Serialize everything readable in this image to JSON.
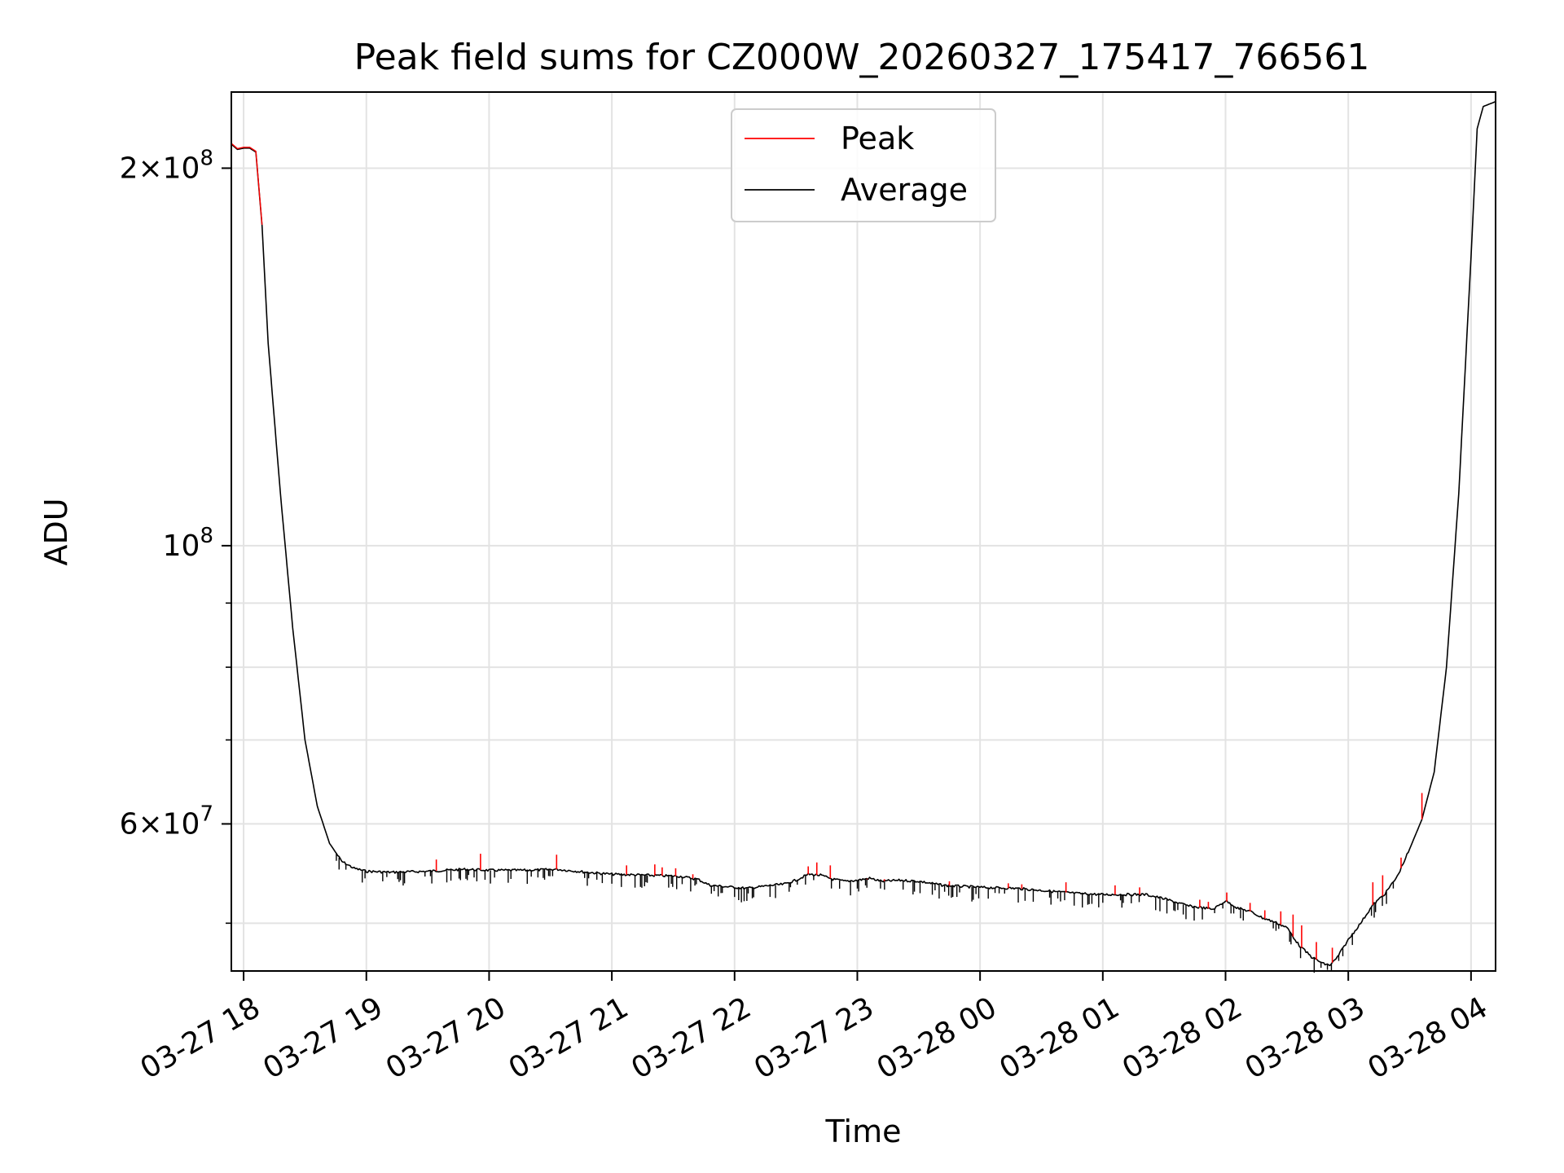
{
  "chart_data": {
    "type": "line",
    "title": "Peak field sums for CZ000W_20260327_175417_766561",
    "xlabel": "Time",
    "ylabel": "ADU",
    "yscale": "log",
    "ylim": [
      45800000,
      230000000
    ],
    "xlim_hours": [
      17.9,
      28.2
    ],
    "x_ticks": [
      {
        "label": "03-27 18",
        "hour": 18
      },
      {
        "label": "03-27 19",
        "hour": 19
      },
      {
        "label": "03-27 20",
        "hour": 20
      },
      {
        "label": "03-27 21",
        "hour": 21
      },
      {
        "label": "03-27 22",
        "hour": 22
      },
      {
        "label": "03-27 23",
        "hour": 23
      },
      {
        "label": "03-28 00",
        "hour": 24
      },
      {
        "label": "03-28 01",
        "hour": 25
      },
      {
        "label": "03-28 02",
        "hour": 26
      },
      {
        "label": "03-28 03",
        "hour": 27
      },
      {
        "label": "03-28 04",
        "hour": 28
      }
    ],
    "y_major_ticks": [
      {
        "value": 60000000,
        "base": "6×10",
        "exp": "7"
      },
      {
        "value": 100000000,
        "base": "10",
        "exp": "8"
      },
      {
        "value": 200000000,
        "base": "2×10",
        "exp": "8"
      }
    ],
    "y_minor_ticks": [
      50000000,
      70000000,
      80000000,
      90000000
    ],
    "grid": true,
    "legend_position": "top-center",
    "series": [
      {
        "name": "Peak",
        "color": "#ff0000",
        "spikes": [
          [
            19.57,
            56200000
          ],
          [
            19.93,
            56800000
          ],
          [
            20.55,
            56700000
          ],
          [
            21.12,
            55600000
          ],
          [
            21.35,
            55700000
          ],
          [
            21.41,
            55400000
          ],
          [
            21.52,
            55300000
          ],
          [
            21.66,
            54700000
          ],
          [
            22.6,
            55500000
          ],
          [
            22.67,
            55900000
          ],
          [
            22.78,
            55600000
          ],
          [
            23.08,
            54200000
          ],
          [
            23.22,
            54200000
          ],
          [
            23.75,
            54000000
          ],
          [
            24.23,
            53800000
          ],
          [
            24.34,
            53700000
          ],
          [
            24.7,
            53900000
          ],
          [
            25.1,
            53600000
          ],
          [
            25.3,
            53400000
          ],
          [
            25.79,
            52200000
          ],
          [
            25.86,
            52000000
          ],
          [
            26.01,
            52900000
          ],
          [
            26.2,
            51900000
          ],
          [
            26.32,
            51200000
          ],
          [
            26.45,
            51100000
          ],
          [
            26.55,
            50800000
          ],
          [
            26.62,
            49800000
          ],
          [
            26.74,
            48300000
          ],
          [
            26.87,
            47800000
          ],
          [
            27.2,
            53900000
          ],
          [
            27.28,
            54600000
          ],
          [
            27.43,
            56400000
          ],
          [
            27.6,
            63500000
          ]
        ]
      },
      {
        "name": "Average",
        "color": "#000000",
        "points": [
          [
            17.9,
            209000000
          ],
          [
            17.95,
            207000000
          ],
          [
            18.0,
            207500000
          ],
          [
            18.05,
            207500000
          ],
          [
            18.1,
            206000000
          ],
          [
            18.15,
            180000000
          ],
          [
            18.2,
            145000000
          ],
          [
            18.3,
            110000000
          ],
          [
            18.4,
            86000000
          ],
          [
            18.5,
            70000000
          ],
          [
            18.6,
            62000000
          ],
          [
            18.7,
            57900000
          ],
          [
            18.8,
            56000000
          ],
          [
            18.9,
            55300000
          ],
          [
            19.0,
            55000000
          ],
          [
            19.2,
            54900000
          ],
          [
            19.5,
            55000000
          ],
          [
            19.8,
            55200000
          ],
          [
            20.0,
            55100000
          ],
          [
            20.3,
            55100000
          ],
          [
            20.55,
            55200000
          ],
          [
            20.8,
            54900000
          ],
          [
            21.0,
            54700000
          ],
          [
            21.3,
            54600000
          ],
          [
            21.55,
            54500000
          ],
          [
            21.7,
            54200000
          ],
          [
            21.8,
            53600000
          ],
          [
            22.0,
            53400000
          ],
          [
            22.1,
            53300000
          ],
          [
            22.3,
            53600000
          ],
          [
            22.4,
            53700000
          ],
          [
            22.5,
            54100000
          ],
          [
            22.6,
            54700000
          ],
          [
            22.7,
            54600000
          ],
          [
            22.8,
            54200000
          ],
          [
            22.9,
            54000000
          ],
          [
            23.0,
            54100000
          ],
          [
            23.1,
            54300000
          ],
          [
            23.2,
            54000000
          ],
          [
            23.35,
            54100000
          ],
          [
            23.5,
            54000000
          ],
          [
            23.7,
            53600000
          ],
          [
            24.0,
            53400000
          ],
          [
            24.3,
            53300000
          ],
          [
            24.6,
            53000000
          ],
          [
            24.8,
            52800000
          ],
          [
            25.0,
            52700000
          ],
          [
            25.2,
            52700000
          ],
          [
            25.35,
            52700000
          ],
          [
            25.5,
            52300000
          ],
          [
            25.7,
            51600000
          ],
          [
            25.9,
            51300000
          ],
          [
            26.0,
            52100000
          ],
          [
            26.1,
            51400000
          ],
          [
            26.2,
            51100000
          ],
          [
            26.3,
            50500000
          ],
          [
            26.4,
            50100000
          ],
          [
            26.5,
            49600000
          ],
          [
            26.6,
            48000000
          ],
          [
            26.7,
            47000000
          ],
          [
            26.8,
            46400000
          ],
          [
            26.85,
            46300000
          ],
          [
            26.9,
            46800000
          ],
          [
            27.0,
            48500000
          ],
          [
            27.1,
            50000000
          ],
          [
            27.2,
            51700000
          ],
          [
            27.3,
            52800000
          ],
          [
            27.4,
            54500000
          ],
          [
            27.5,
            57300000
          ],
          [
            27.6,
            60500000
          ],
          [
            27.7,
            66000000
          ],
          [
            27.8,
            80000000
          ],
          [
            27.9,
            110000000
          ],
          [
            28.0,
            170000000
          ],
          [
            28.05,
            215000000
          ],
          [
            28.1,
            224000000
          ],
          [
            28.2,
            226000000
          ]
        ]
      }
    ]
  }
}
